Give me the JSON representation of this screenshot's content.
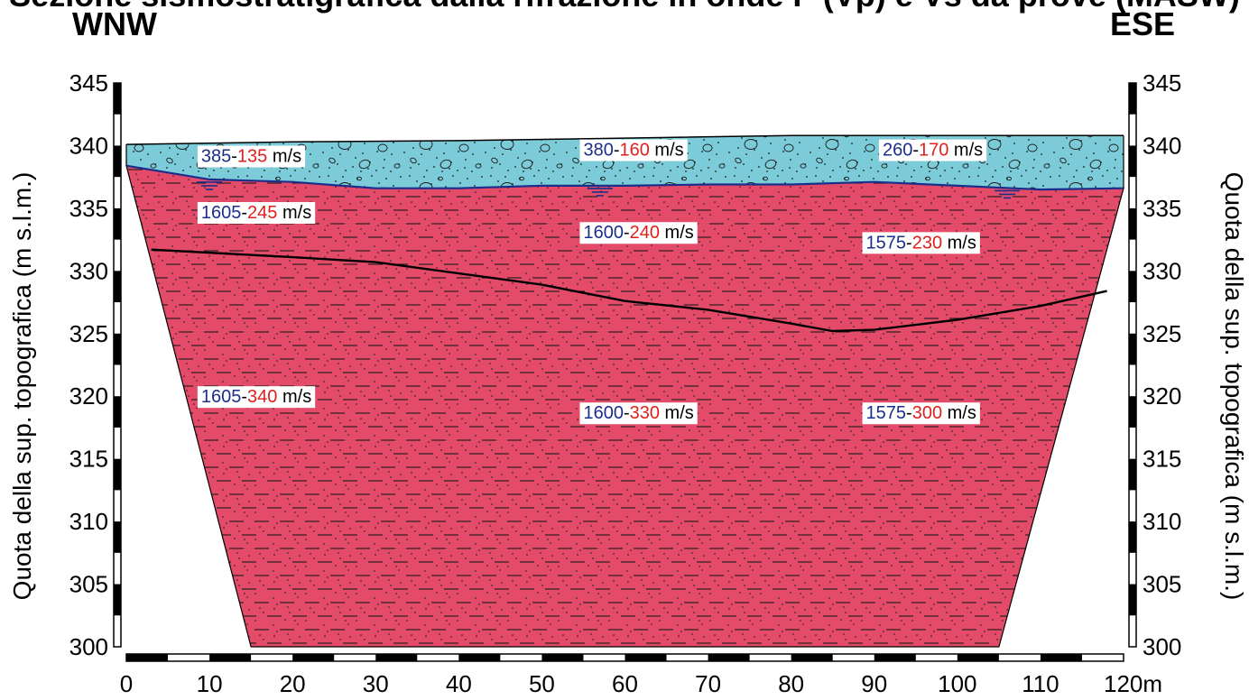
{
  "title": "Sezione sismostratigrafica dalla rifrazione in onde P (Vp) e Vs da prove (MASW)",
  "direction_left": "WNW",
  "direction_right": "ESE",
  "y_axis": {
    "label_left": "Quota della sup. topografica (m s.l.m.)",
    "label_right": "Quota della sup. topografica (m s.l.m.)",
    "min": 300,
    "max": 345,
    "step": 5,
    "ticks": [
      "300",
      "305",
      "310",
      "315",
      "320",
      "325",
      "330",
      "335",
      "340",
      "345"
    ]
  },
  "x_axis": {
    "min": 0,
    "max": 120,
    "step": 10,
    "ticks": [
      "0",
      "10",
      "20",
      "30",
      "40",
      "50",
      "60",
      "70",
      "80",
      "90",
      "100",
      "110",
      "120m"
    ]
  },
  "colors": {
    "upper_layer": "#7ccbd8",
    "lower_layer": "#e34b69",
    "water_table": "#1c2e8c",
    "vp_text": "#1c2e8c",
    "vs_text": "#e0201c",
    "interface": "#000000"
  },
  "profile": {
    "topography": [
      [
        0,
        340.1
      ],
      [
        20,
        340.3
      ],
      [
        40,
        340.4
      ],
      [
        60,
        340.6
      ],
      [
        80,
        340.8
      ],
      [
        100,
        340.8
      ],
      [
        120,
        340.8
      ]
    ],
    "water_table": [
      [
        0,
        338.4
      ],
      [
        10,
        337.3
      ],
      [
        20,
        337.1
      ],
      [
        30,
        336.6
      ],
      [
        40,
        336.6
      ],
      [
        50,
        336.8
      ],
      [
        60,
        336.8
      ],
      [
        70,
        336.9
      ],
      [
        80,
        336.9
      ],
      [
        90,
        337.1
      ],
      [
        100,
        336.8
      ],
      [
        110,
        336.5
      ],
      [
        120,
        336.6
      ]
    ],
    "lower_interface": [
      [
        3,
        331.7
      ],
      [
        20,
        331.1
      ],
      [
        30,
        330.7
      ],
      [
        40,
        329.8
      ],
      [
        50,
        328.9
      ],
      [
        60,
        327.6
      ],
      [
        70,
        326.9
      ],
      [
        80,
        325.8
      ],
      [
        85,
        325.2
      ],
      [
        90,
        325.3
      ],
      [
        100,
        326.1
      ],
      [
        110,
        327.2
      ],
      [
        118,
        328.4
      ]
    ],
    "section_bottom": 300,
    "bottom_left_x": 15,
    "bottom_right_x": 105
  },
  "velocity_labels": [
    {
      "x": 9,
      "y": 338.7,
      "vp": "385",
      "vs": "135",
      "unit": "m/s"
    },
    {
      "x": 55,
      "y": 339.2,
      "vp": "380",
      "vs": "160",
      "unit": "m/s"
    },
    {
      "x": 91,
      "y": 339.2,
      "vp": "260",
      "vs": "170",
      "unit": "m/s"
    },
    {
      "x": 9,
      "y": 334.2,
      "vp": "1605",
      "vs": "245",
      "unit": "m/s"
    },
    {
      "x": 55,
      "y": 332.6,
      "vp": "1600",
      "vs": "240",
      "unit": "m/s"
    },
    {
      "x": 89,
      "y": 331.8,
      "vp": "1575",
      "vs": "230",
      "unit": "m/s"
    },
    {
      "x": 9,
      "y": 319.5,
      "vp": "1605",
      "vs": "340",
      "unit": "m/s"
    },
    {
      "x": 55,
      "y": 318.2,
      "vp": "1600",
      "vs": "330",
      "unit": "m/s"
    },
    {
      "x": 89,
      "y": 318.2,
      "vp": "1575",
      "vs": "300",
      "unit": "m/s"
    }
  ],
  "water_table_symbols_x": [
    10,
    57,
    106
  ]
}
